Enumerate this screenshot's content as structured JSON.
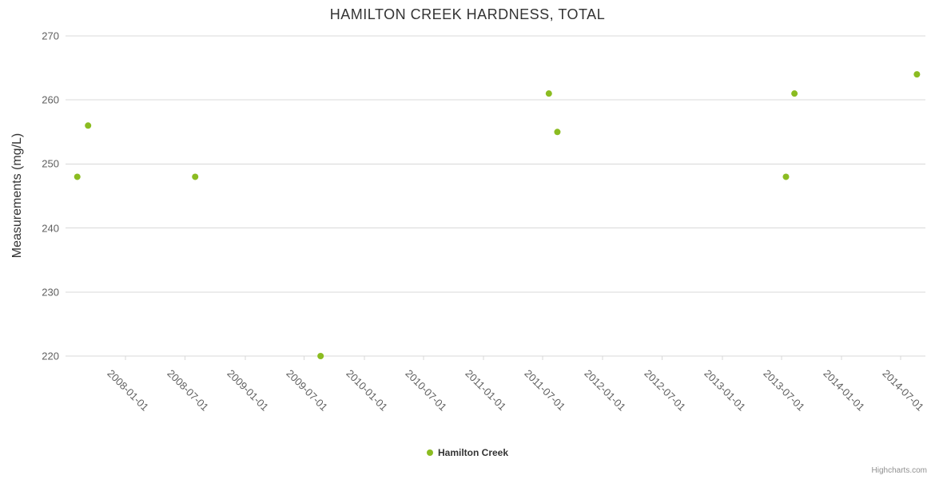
{
  "title": "HAMILTON CREEK HARDNESS, TOTAL",
  "credits_label": "Highcharts.com",
  "colors": {
    "series": "#8bbc21",
    "grid": "#d8d8d8",
    "axis_line": "#d8d8d8",
    "label_text": "#606060",
    "title_text": "#333333"
  },
  "legend": {
    "label": "Hamilton Creek"
  },
  "chart_data": {
    "type": "scatter",
    "title": "HAMILTON CREEK HARDNESS, TOTAL",
    "xlabel": "",
    "ylabel": "Measurements (mg/L)",
    "ylim": [
      220,
      270
    ],
    "yticks": [
      220,
      230,
      240,
      250,
      260,
      270
    ],
    "xlim": [
      "2007-07-01",
      "2014-09-15"
    ],
    "xticks": [
      "2008-01-01",
      "2008-07-01",
      "2009-01-01",
      "2009-07-01",
      "2010-01-01",
      "2010-07-01",
      "2011-01-01",
      "2011-07-01",
      "2012-01-01",
      "2012-07-01",
      "2013-01-01",
      "2013-07-01",
      "2014-01-01",
      "2014-07-01"
    ],
    "grid": true,
    "legend_position": "bottom",
    "series": [
      {
        "name": "Hamilton Creek",
        "color": "#8bbc21",
        "marker": "circle",
        "points": [
          {
            "x": "2007-08-06",
            "y": 248
          },
          {
            "x": "2007-09-08",
            "y": 256
          },
          {
            "x": "2008-08-01",
            "y": 248
          },
          {
            "x": "2009-08-20",
            "y": 220
          },
          {
            "x": "2011-07-20",
            "y": 261
          },
          {
            "x": "2011-08-15",
            "y": 255
          },
          {
            "x": "2013-07-15",
            "y": 248
          },
          {
            "x": "2013-08-10",
            "y": 261
          },
          {
            "x": "2014-08-20",
            "y": 264
          }
        ]
      }
    ]
  }
}
